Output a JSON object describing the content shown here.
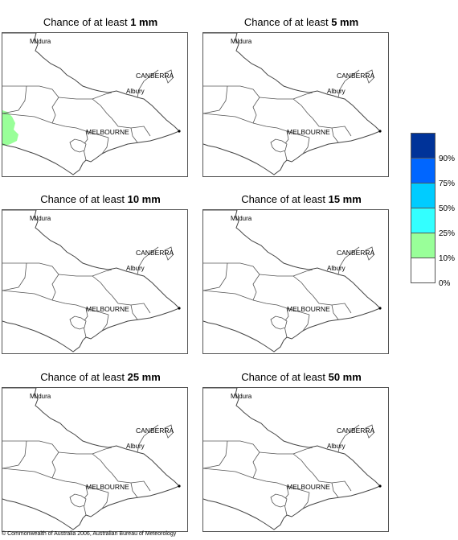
{
  "panels": [
    {
      "prefix": "Chance of at least ",
      "amount": "1 mm"
    },
    {
      "prefix": "Chance of at least ",
      "amount": "5 mm"
    },
    {
      "prefix": "Chance of at least ",
      "amount": "10 mm"
    },
    {
      "prefix": "Chance of at least ",
      "amount": "15 mm"
    },
    {
      "prefix": "Chance of at least ",
      "amount": "25 mm"
    },
    {
      "prefix": "Chance of at least ",
      "amount": "50 mm"
    }
  ],
  "places": {
    "mildura": "Mildura",
    "canberra": "CANBERRA",
    "albury": "Albury",
    "melbourne": "MELBOURNE"
  },
  "legend": {
    "ticks": [
      "90%",
      "75%",
      "50%",
      "25%",
      "10%",
      "0%"
    ],
    "colors": [
      "#003399",
      "#0066ff",
      "#00ccff",
      "#33ffff",
      "#99ff99",
      "#ffffff"
    ]
  },
  "footer": {
    "copyright": "© Commonwealth of Australia 2006, Australian Bureau of Meteorology"
  }
}
